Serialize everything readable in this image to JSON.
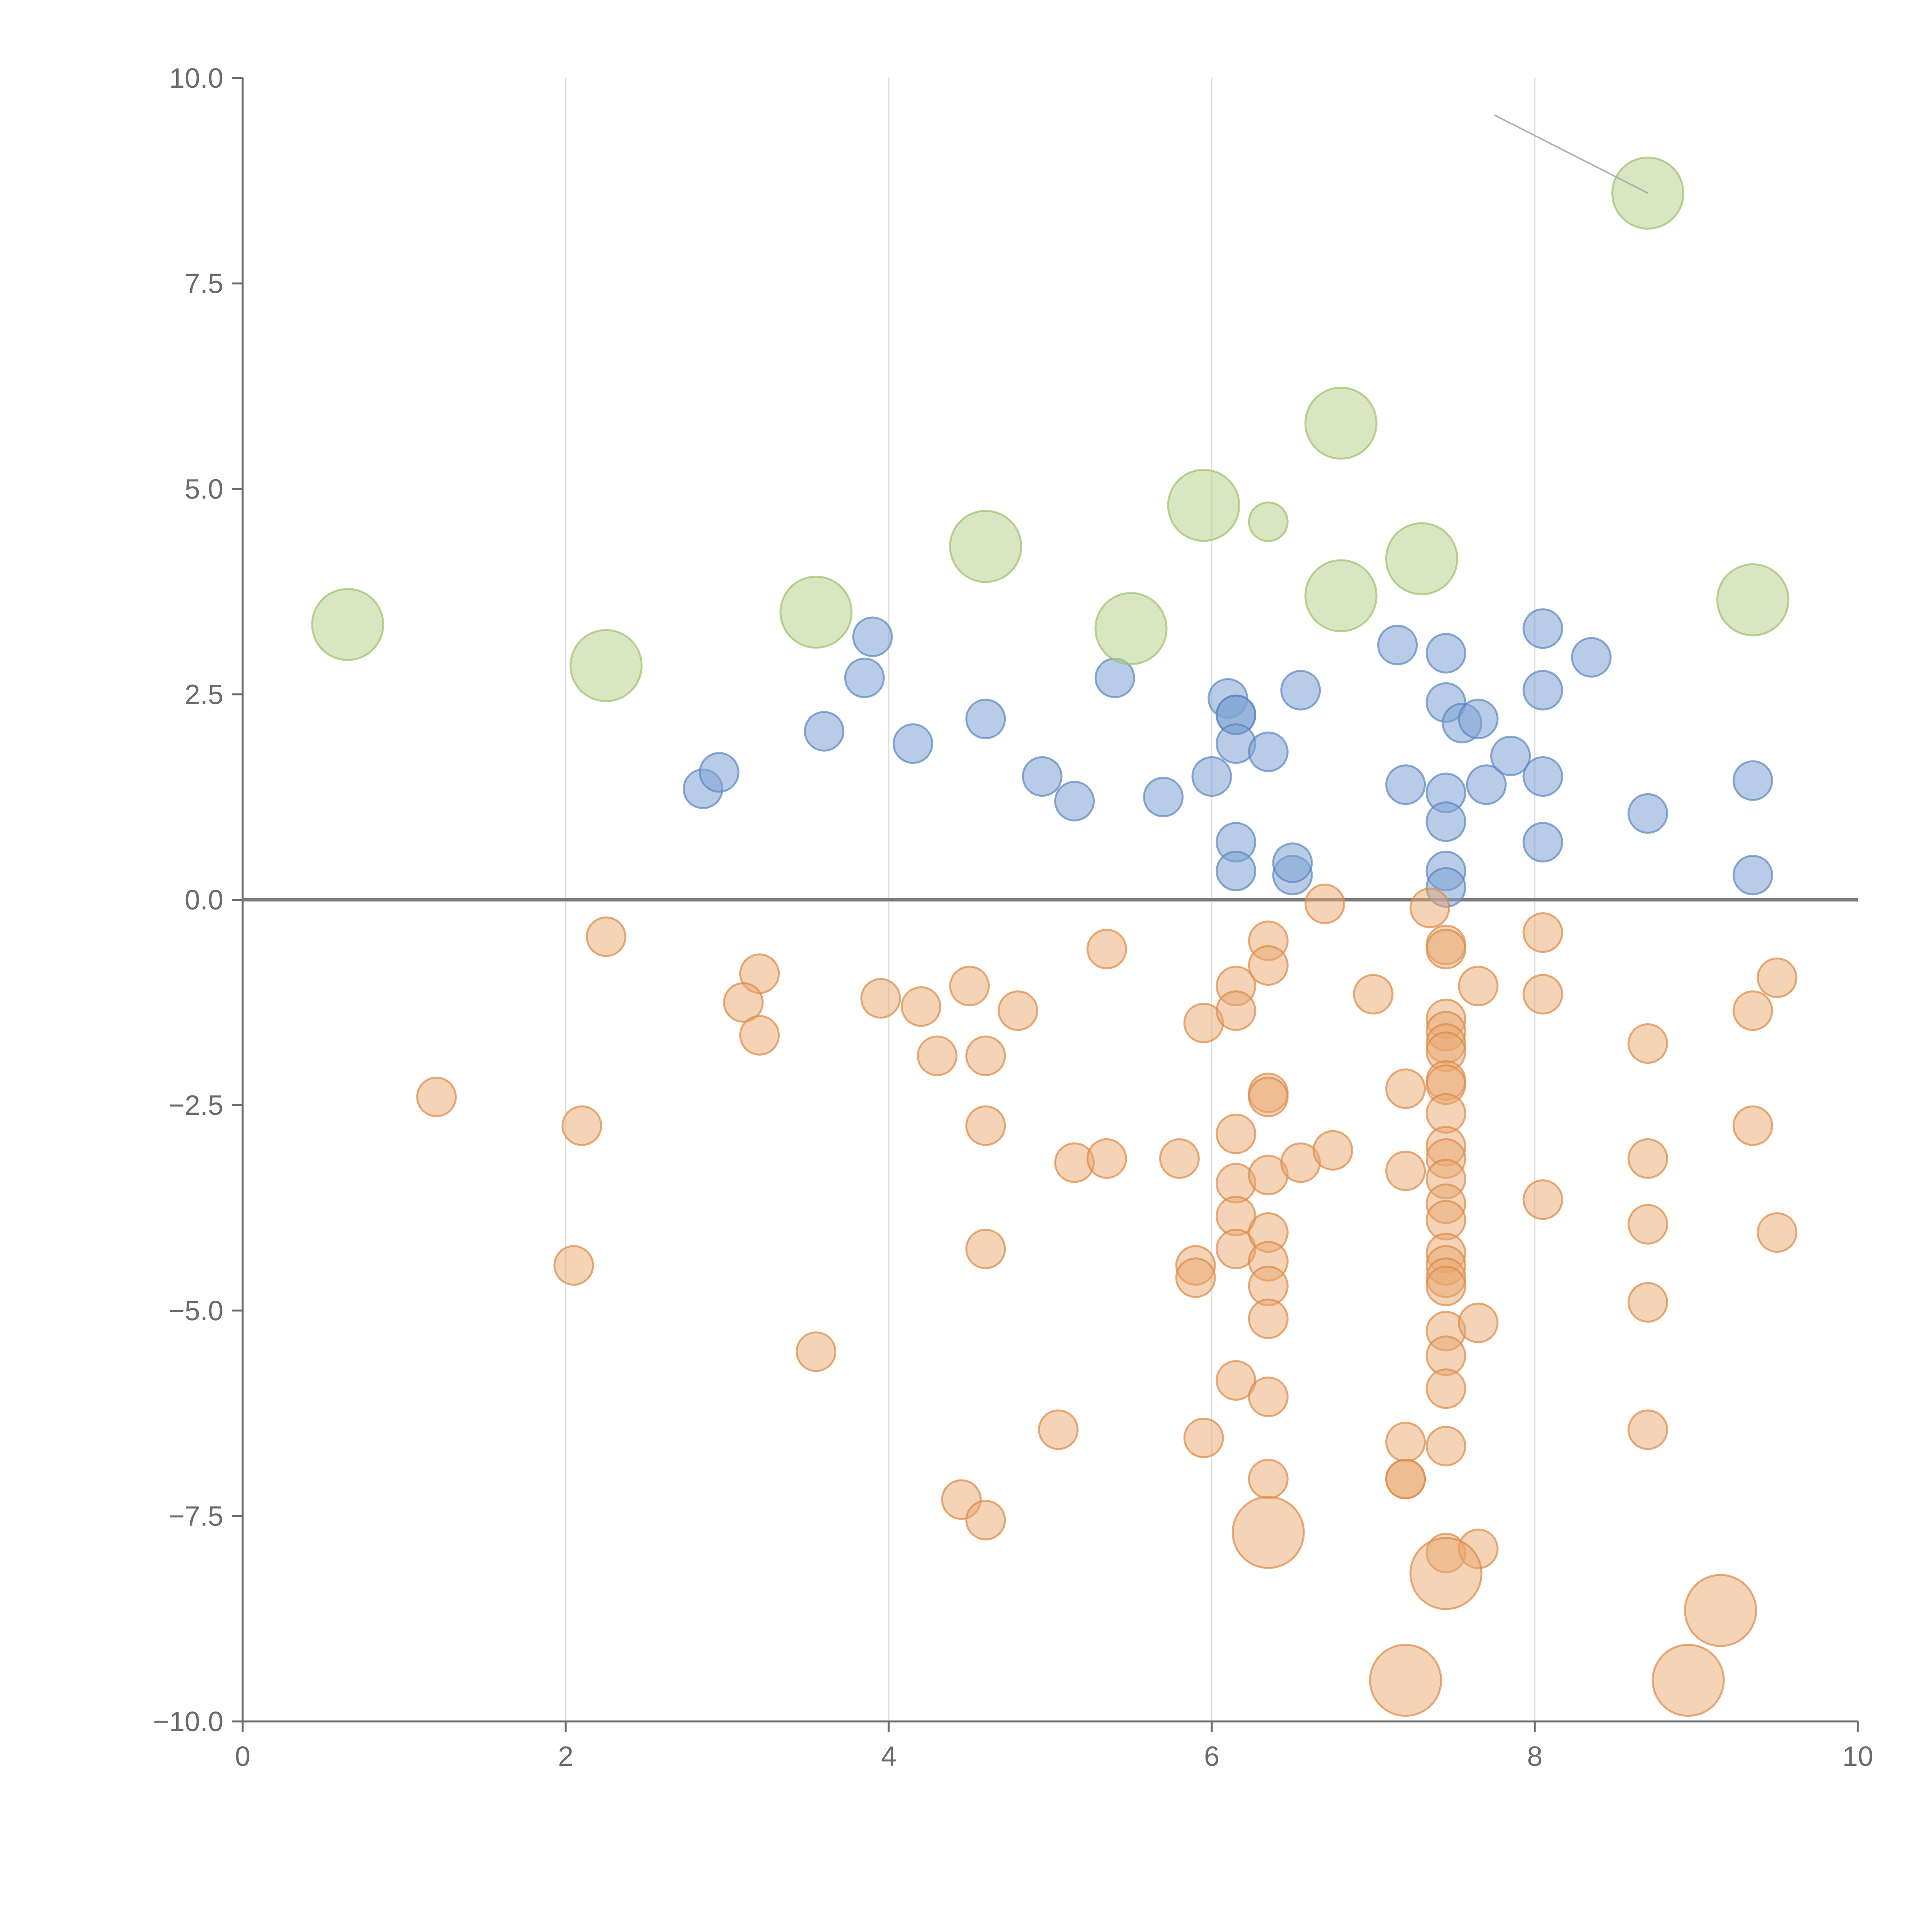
{
  "chart_data": {
    "type": "scatter",
    "title": "",
    "xlabel": "",
    "ylabel": "",
    "xlim": [
      0,
      10
    ],
    "ylim": [
      -10,
      10
    ],
    "xticks": [
      0,
      2,
      4,
      6,
      8,
      10
    ],
    "xtick_labels": [
      "0",
      "2",
      "4",
      "6",
      "8",
      "10"
    ],
    "yticks": [
      10,
      7.5,
      5,
      2.5,
      0,
      -2.5,
      -5,
      -7.5,
      -10
    ],
    "ytick_labels": [
      "10.0",
      "7.5",
      "5.0",
      "2.5",
      "0.0",
      "−2.5",
      "−5.0",
      "−7.5",
      "−10.0"
    ],
    "grid": {
      "vertical": true,
      "horizontal": false
    },
    "reference_line_y": 0,
    "series": [
      {
        "name": "blue",
        "color": "#7ea3d3",
        "stroke": "#5b86c0",
        "opacity": 0.55,
        "size": 1,
        "points": [
          [
            3.9,
            3.2
          ],
          [
            3.85,
            2.7
          ],
          [
            3.6,
            2.05
          ],
          [
            4.15,
            1.9
          ],
          [
            2.85,
            1.35
          ],
          [
            2.95,
            1.55
          ],
          [
            4.6,
            2.2
          ],
          [
            4.95,
            1.5
          ],
          [
            5.15,
            1.2
          ],
          [
            5.4,
            2.7
          ],
          [
            5.7,
            1.25
          ],
          [
            6.0,
            1.5
          ],
          [
            6.1,
            2.45
          ],
          [
            6.15,
            2.25
          ],
          [
            6.15,
            2.25
          ],
          [
            6.15,
            1.9
          ],
          [
            6.35,
            1.8
          ],
          [
            6.55,
            2.55
          ],
          [
            6.15,
            0.7
          ],
          [
            6.15,
            0.35
          ],
          [
            6.5,
            0.3
          ],
          [
            6.5,
            0.45
          ],
          [
            7.15,
            3.1
          ],
          [
            7.2,
            1.4
          ],
          [
            7.45,
            3.0
          ],
          [
            7.45,
            2.4
          ],
          [
            7.55,
            2.15
          ],
          [
            7.65,
            2.2
          ],
          [
            7.45,
            1.3
          ],
          [
            7.45,
            0.95
          ],
          [
            7.45,
            0.35
          ],
          [
            7.45,
            0.15
          ],
          [
            7.7,
            1.4
          ],
          [
            7.85,
            1.75
          ],
          [
            8.05,
            3.3
          ],
          [
            8.05,
            2.55
          ],
          [
            8.05,
            1.5
          ],
          [
            8.05,
            0.7
          ],
          [
            8.35,
            2.95
          ],
          [
            8.7,
            1.05
          ],
          [
            9.35,
            1.45
          ],
          [
            9.35,
            0.3
          ]
        ]
      },
      {
        "name": "orange",
        "color": "#eaa770",
        "stroke": "#dc8a46",
        "opacity": 0.5,
        "size": 1,
        "points": [
          [
            1.2,
            -2.4
          ],
          [
            2.25,
            -0.45
          ],
          [
            2.1,
            -2.75
          ],
          [
            2.05,
            -4.45
          ],
          [
            3.2,
            -0.9
          ],
          [
            3.1,
            -1.25
          ],
          [
            3.2,
            -1.65
          ],
          [
            3.55,
            -5.5
          ],
          [
            3.95,
            -1.2
          ],
          [
            4.2,
            -1.3
          ],
          [
            4.5,
            -1.05
          ],
          [
            4.3,
            -1.9
          ],
          [
            4.6,
            -1.9
          ],
          [
            4.8,
            -1.35
          ],
          [
            4.6,
            -2.75
          ],
          [
            4.6,
            -4.25
          ],
          [
            4.45,
            -7.3
          ],
          [
            4.6,
            -7.55
          ],
          [
            5.05,
            -6.45
          ],
          [
            5.15,
            -3.2
          ],
          [
            5.35,
            -3.15
          ],
          [
            5.35,
            -0.6
          ],
          [
            5.8,
            -3.15
          ],
          [
            5.95,
            -1.5
          ],
          [
            5.9,
            -4.45
          ],
          [
            5.9,
            -4.6
          ],
          [
            5.95,
            -6.55
          ],
          [
            6.15,
            -1.05
          ],
          [
            6.15,
            -1.35
          ],
          [
            6.15,
            -2.85
          ],
          [
            6.15,
            -3.45
          ],
          [
            6.15,
            -3.85
          ],
          [
            6.15,
            -4.25
          ],
          [
            6.15,
            -5.85
          ],
          [
            6.35,
            -0.5
          ],
          [
            6.35,
            -0.8
          ],
          [
            6.35,
            -2.35
          ],
          [
            6.35,
            -2.4
          ],
          [
            6.35,
            -3.35
          ],
          [
            6.35,
            -4.05
          ],
          [
            6.35,
            -4.4
          ],
          [
            6.35,
            -4.7
          ],
          [
            6.35,
            -5.1
          ],
          [
            6.35,
            -6.05
          ],
          [
            6.35,
            -7.05
          ],
          [
            6.55,
            -3.2
          ],
          [
            6.7,
            -0.05
          ],
          [
            6.75,
            -3.05
          ],
          [
            7.0,
            -1.15
          ],
          [
            7.2,
            -2.3
          ],
          [
            7.2,
            -3.3
          ],
          [
            7.2,
            -6.6
          ],
          [
            7.2,
            -7.05
          ],
          [
            7.2,
            -7.05
          ],
          [
            7.35,
            -0.1
          ],
          [
            7.45,
            -0.55
          ],
          [
            7.45,
            -0.6
          ],
          [
            7.45,
            -1.45
          ],
          [
            7.45,
            -1.6
          ],
          [
            7.45,
            -1.75
          ],
          [
            7.45,
            -1.85
          ],
          [
            7.45,
            -2.2
          ],
          [
            7.45,
            -2.25
          ],
          [
            7.45,
            -2.6
          ],
          [
            7.45,
            -3.0
          ],
          [
            7.45,
            -3.15
          ],
          [
            7.45,
            -3.4
          ],
          [
            7.45,
            -3.7
          ],
          [
            7.45,
            -3.9
          ],
          [
            7.45,
            -4.3
          ],
          [
            7.45,
            -4.45
          ],
          [
            7.45,
            -4.6
          ],
          [
            7.45,
            -4.7
          ],
          [
            7.45,
            -5.25
          ],
          [
            7.45,
            -5.55
          ],
          [
            7.45,
            -5.95
          ],
          [
            7.45,
            -6.65
          ],
          [
            7.45,
            -7.95
          ],
          [
            7.65,
            -1.05
          ],
          [
            7.65,
            -5.15
          ],
          [
            7.65,
            -7.9
          ],
          [
            8.05,
            -0.4
          ],
          [
            8.05,
            -1.15
          ],
          [
            8.05,
            -3.65
          ],
          [
            8.7,
            -1.75
          ],
          [
            8.7,
            -3.15
          ],
          [
            8.7,
            -3.95
          ],
          [
            8.7,
            -4.9
          ],
          [
            8.7,
            -6.45
          ],
          [
            9.35,
            -1.35
          ],
          [
            9.35,
            -2.75
          ],
          [
            9.5,
            -0.95
          ],
          [
            9.5,
            -4.05
          ]
        ]
      },
      {
        "name": "orange-large",
        "color": "#eaa770",
        "stroke": "#dc8a46",
        "opacity": 0.5,
        "size": 2,
        "points": [
          [
            6.35,
            -7.7
          ],
          [
            7.45,
            -8.2
          ],
          [
            7.2,
            -9.5
          ],
          [
            9.15,
            -8.65
          ],
          [
            8.95,
            -9.5
          ]
        ]
      },
      {
        "name": "green",
        "color": "#b8d48f",
        "stroke": "#9cc06a",
        "opacity": 0.55,
        "size": 2,
        "points": [
          [
            0.65,
            3.35
          ],
          [
            2.25,
            2.85
          ],
          [
            3.55,
            3.5
          ],
          [
            4.6,
            4.3
          ],
          [
            5.5,
            3.3
          ],
          [
            5.95,
            4.8
          ],
          [
            6.35,
            4.6,
            "small"
          ],
          [
            6.8,
            5.8
          ],
          [
            6.8,
            3.7
          ],
          [
            7.3,
            4.15
          ],
          [
            8.7,
            8.6
          ],
          [
            9.35,
            3.65
          ]
        ]
      }
    ],
    "annotations_leaders": [
      {
        "from": [
          8.7,
          8.6
        ],
        "to": [
          7.75,
          9.55
        ],
        "color": "#b0b0b0"
      }
    ]
  }
}
